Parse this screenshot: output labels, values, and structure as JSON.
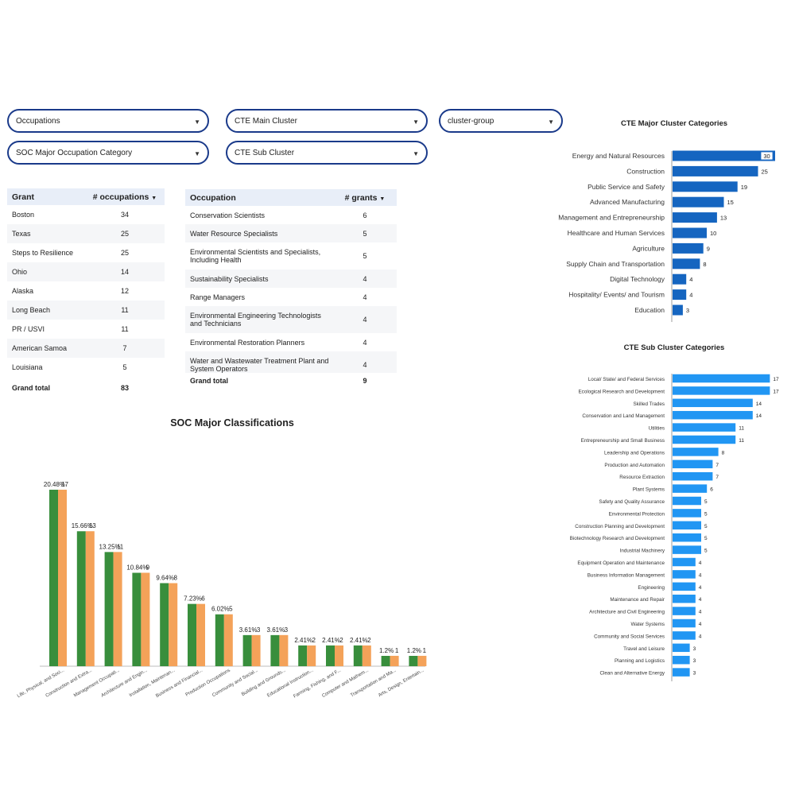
{
  "filters": {
    "occupations": "Occupations",
    "cte_main": "CTE Main Cluster",
    "cluster_group": "cluster-group",
    "soc_major": "SOC Major Occupation Category",
    "cte_sub": "CTE Sub Cluster"
  },
  "grant_table": {
    "headers": [
      "Grant",
      "# occupations"
    ],
    "rows": [
      [
        "Boston",
        "34"
      ],
      [
        "Texas",
        "25"
      ],
      [
        "Steps to Resilience",
        "25"
      ],
      [
        "Ohio",
        "14"
      ],
      [
        "Alaska",
        "12"
      ],
      [
        "Long Beach",
        "11"
      ],
      [
        "PR / USVI",
        "11"
      ],
      [
        "American Samoa",
        "7"
      ],
      [
        "Louisiana",
        "5"
      ]
    ],
    "total_label": "Grand total",
    "total_value": "83"
  },
  "occupation_table": {
    "headers": [
      "Occupation",
      "# grants"
    ],
    "rows": [
      [
        "Conservation Scientists",
        "6"
      ],
      [
        "Water Resource Specialists",
        "5"
      ],
      [
        "Environmental Scientists and Specialists, Including Health",
        "5"
      ],
      [
        "Sustainability Specialists",
        "4"
      ],
      [
        "Range Managers",
        "4"
      ],
      [
        "Environmental Engineering Technologists and Technicians",
        "4"
      ],
      [
        "Environmental Restoration Planners",
        "4"
      ],
      [
        "Water and Wastewater Treatment Plant and System Operators",
        "4"
      ]
    ],
    "total_label": "Grand total",
    "total_value": "9"
  },
  "colors": {
    "green": "#388e3c",
    "orange": "#f4a259",
    "blue_dark": "#1565c0",
    "blue_light": "#2196f3",
    "filter_border": "#1a3a8a"
  },
  "chart_data": [
    {
      "type": "bar",
      "title": "SOC Major Classifications",
      "categories": [
        "Life, Physical, and Soci...",
        "Construction and Extra...",
        "Management Occupati...",
        "Architecture and Engin...",
        "Installation, Maintenan...",
        "Business and Financial...",
        "Production Occupations",
        "Community and Social...",
        "Building and Grounds...",
        "Educational Instruction...",
        "Farming, Fishing, and F...",
        "Computer and Mathem...",
        "Transportation and Ma...",
        "Arts, Design, Entertain..."
      ],
      "series": [
        {
          "values": [
            20.48,
            15.66,
            13.25,
            10.84,
            9.64,
            7.23,
            6.02,
            3.61,
            3.61,
            2.41,
            2.41,
            2.41,
            1.2,
            1.2
          ],
          "labels": [
            "20.48%",
            "15.66%",
            "13.25%",
            "10.84%",
            "9.64%",
            "7.23%",
            "6.02%",
            "3.61%",
            "3.61%",
            "2.41%",
            "2.41%",
            "2.41%",
            "1.2%",
            "1.2%"
          ]
        },
        {
          "values": [
            17,
            13,
            11,
            9,
            8,
            6,
            5,
            3,
            3,
            2,
            2,
            2,
            1,
            1
          ],
          "labels": [
            "17",
            "13",
            "11",
            "9",
            "8",
            "6",
            "5",
            "3",
            "3",
            "2",
            "2",
            "2",
            "1",
            "1"
          ]
        }
      ]
    },
    {
      "type": "bar",
      "orientation": "horizontal",
      "title": "CTE Major Cluster Categories",
      "categories": [
        "Energy and Natural Resources",
        "Construction",
        "Public Service and Safety",
        "Advanced Manufacturing",
        "Management and Entrepreneurship",
        "Healthcare and Human Services",
        "Agriculture",
        "Supply Chain and Transportation",
        "Digital Technology",
        "Hospitality/ Events/ and Tourism",
        "Education"
      ],
      "values": [
        30,
        25,
        19,
        15,
        13,
        10,
        9,
        8,
        4,
        4,
        3
      ]
    },
    {
      "type": "bar",
      "orientation": "horizontal",
      "title": "CTE Sub Cluster Categories",
      "categories": [
        "Local/ State/ and Federal Services",
        "Ecological Research and Development",
        "Skilled Trades",
        "Conservation and Land Management",
        "Utilities",
        "Entrepreneurship and Small Business",
        "Leadership and Operations",
        "Production and Automation",
        "Resource Extraction",
        "Plant Systems",
        "Safety and Quality Assurance",
        "Environmental Protection",
        "Construction Planning and Development",
        "Biotechnology Research and Development",
        "Industrial Machinery",
        "Equipment Operation and Maintenance",
        "Business Information Management",
        "Engineering",
        "Maintenance and Repair",
        "Architecture and Civil Engineering",
        "Water Systems",
        "Community and Social Services",
        "Travel and Leisure",
        "Planning and Logistics",
        "Clean and Alternative Energy"
      ],
      "values": [
        17,
        17,
        14,
        14,
        11,
        11,
        8,
        7,
        7,
        6,
        5,
        5,
        5,
        5,
        5,
        4,
        4,
        4,
        4,
        4,
        4,
        4,
        3,
        3,
        3
      ]
    }
  ]
}
